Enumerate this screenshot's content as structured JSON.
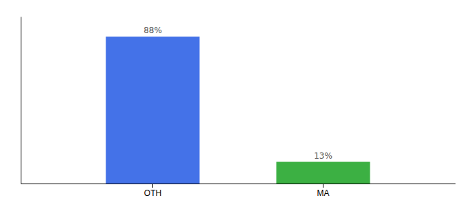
{
  "chart_data": {
    "type": "bar",
    "categories": [
      "OTH",
      "MA"
    ],
    "values": [
      88,
      13
    ],
    "value_labels": [
      "88%",
      "13%"
    ],
    "colors": [
      "#4472e8",
      "#3cb043"
    ],
    "ylim": [
      0,
      100
    ],
    "data_labels": true,
    "tick_labels": "x"
  }
}
